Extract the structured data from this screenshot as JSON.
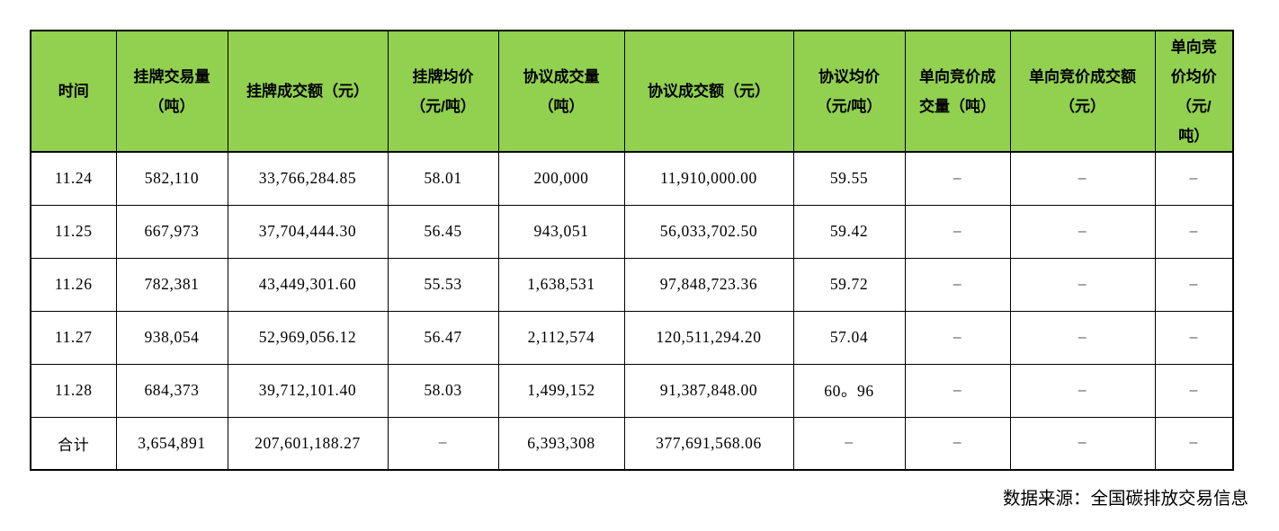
{
  "chart_data": {
    "type": "table",
    "title": "",
    "columns": [
      {
        "label": "时间",
        "lines": [
          "时间"
        ]
      },
      {
        "label": "挂牌交易量（吨）",
        "lines": [
          "挂牌交易量",
          "（吨）"
        ]
      },
      {
        "label": "挂牌成交额（元）",
        "lines": [
          "挂牌成交额（元）"
        ]
      },
      {
        "label": "挂牌均价（元/吨）",
        "lines": [
          "挂牌均价",
          "（元/吨）"
        ]
      },
      {
        "label": "协议成交量（吨）",
        "lines": [
          "协议成交量",
          "（吨）"
        ]
      },
      {
        "label": "协议成交额（元）",
        "lines": [
          "协议成交额（元）"
        ]
      },
      {
        "label": "协议均价（元/吨）",
        "lines": [
          "协议均价",
          "（元/吨）"
        ]
      },
      {
        "label": "单向竞价成交量（吨）",
        "lines": [
          "单向竞价成",
          "交量（吨）"
        ]
      },
      {
        "label": "单向竞价成交额（元）",
        "lines": [
          "单向竞价成交额",
          "（元）"
        ]
      },
      {
        "label": "单向竞价均价（元/吨）",
        "lines": [
          "单向竞",
          "价均价",
          "（元/",
          "吨）"
        ]
      }
    ],
    "rows": [
      [
        "11.24",
        "582,110",
        "33,766,284.85",
        "58.01",
        "200,000",
        "11,910,000.00",
        "59.55",
        "–",
        "–",
        "–"
      ],
      [
        "11.25",
        "667,973",
        "37,704,444.30",
        "56.45",
        "943,051",
        "56,033,702.50",
        "59.42",
        "–",
        "–",
        "–"
      ],
      [
        "11.26",
        "782,381",
        "43,449,301.60",
        "55.53",
        "1,638,531",
        "97,848,723.36",
        "59.72",
        "–",
        "–",
        "–"
      ],
      [
        "11.27",
        "938,054",
        "52,969,056.12",
        "56.47",
        "2,112,574",
        "120,511,294.20",
        "57.04",
        "–",
        "–",
        "–"
      ],
      [
        "11.28",
        "684,373",
        "39,712,101.40",
        "58.03",
        "1,499,152",
        "91,387,848.00",
        "60。96",
        "–",
        "–",
        "–"
      ],
      [
        "合计",
        "3,654,891",
        "207,601,188.27",
        "–",
        "6,393,308",
        "377,691,568.06",
        "–",
        "–",
        "–",
        "–"
      ]
    ]
  },
  "footer": {
    "source": "数据来源：全国碳排放交易信息"
  },
  "colors": {
    "header_bg": "#92d050",
    "border": "#000000",
    "dash": "#595959",
    "text": "#000000"
  }
}
